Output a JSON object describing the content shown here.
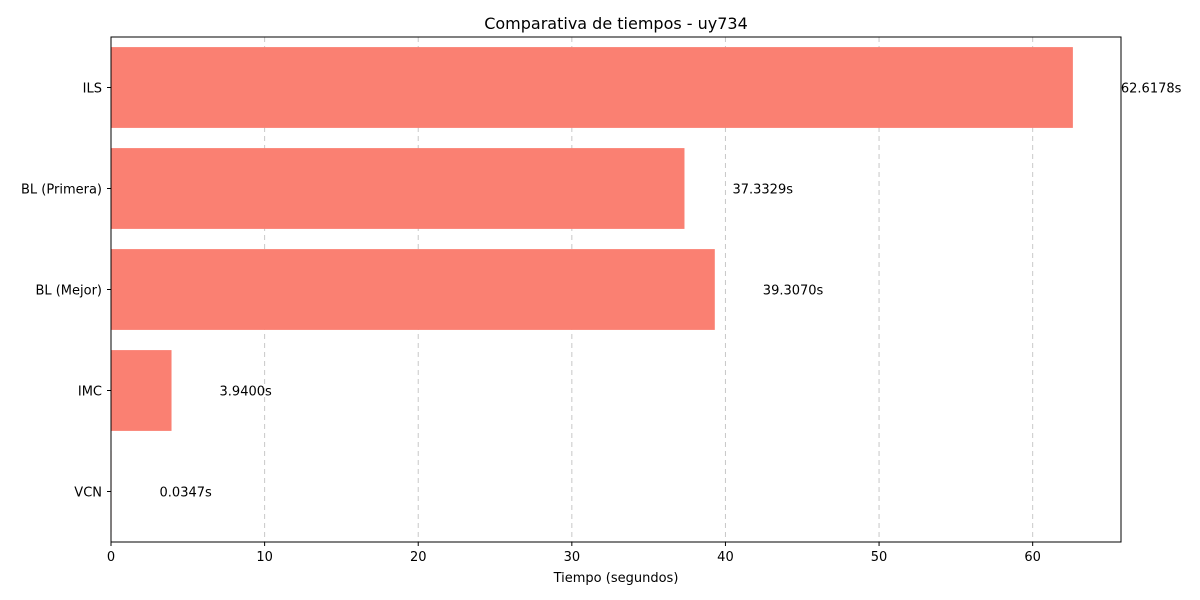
{
  "chart_data": {
    "type": "bar",
    "orientation": "horizontal",
    "title": "Comparativa de tiempos - uy734",
    "xlabel": "Tiempo (segundos)",
    "ylabel": "",
    "categories": [
      "ILS",
      "BL (Primera)",
      "BL (Mejor)",
      "IMC",
      "VCN"
    ],
    "values": [
      62.6178,
      37.3329,
      39.307,
      3.94,
      0.0347
    ],
    "value_labels": [
      "62.6178s",
      "37.3329s",
      "39.3070s",
      "3.9400s",
      "0.0347s"
    ],
    "xlim": [
      0,
      65.75
    ],
    "xticks": [
      0,
      10,
      20,
      30,
      40,
      50,
      60
    ],
    "xtick_labels": [
      "0",
      "10",
      "20",
      "30",
      "40",
      "50",
      "60"
    ],
    "grid": {
      "x": true,
      "y": false,
      "style": "dashed"
    },
    "bar_color": "#fa8072",
    "grid_color": "#c8c8c8"
  }
}
